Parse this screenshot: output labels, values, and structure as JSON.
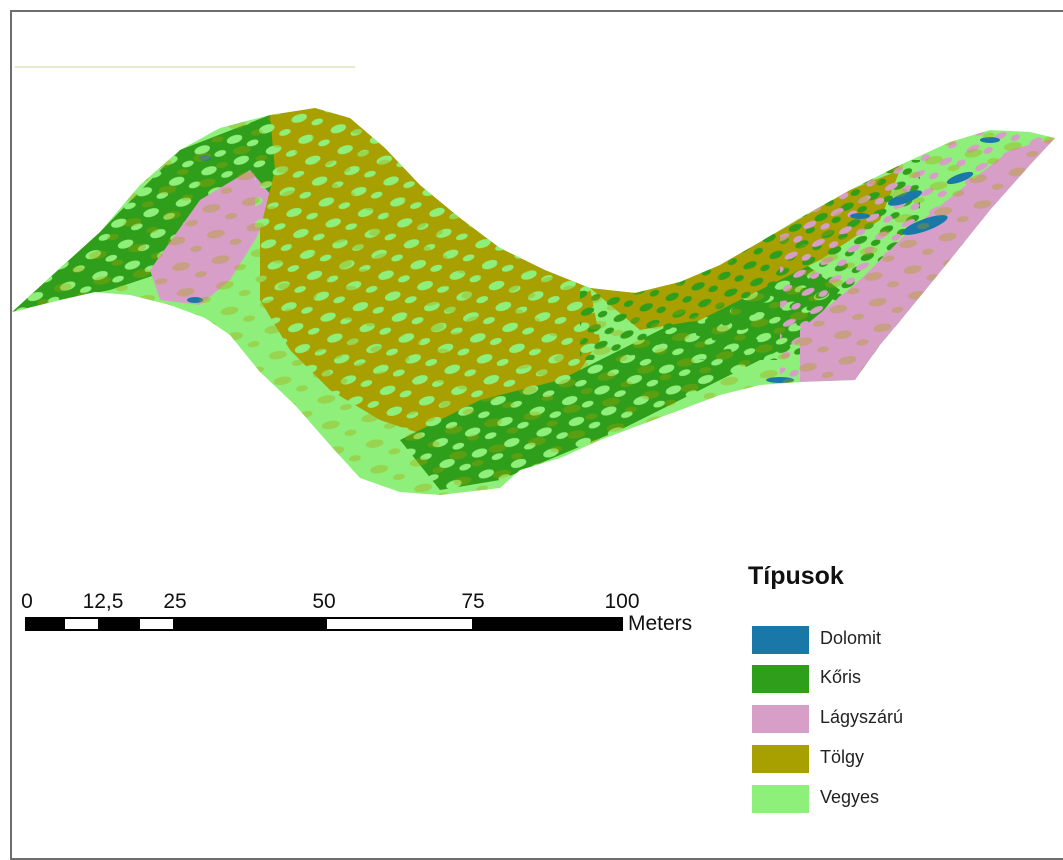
{
  "map": {
    "colors": {
      "dolomit": "#1a78a8",
      "koris": "#2f9e1a",
      "lagyszaru": "#d79ec8",
      "tolgy": "#a8a000",
      "vegyes": "#8ef07a"
    }
  },
  "scale_bar": {
    "tick_labels": [
      "0",
      "12,5",
      "25",
      "50",
      "75",
      "100"
    ],
    "units": "Meters"
  },
  "legend": {
    "title": "Típusok",
    "items": [
      {
        "label": "Dolomit",
        "color": "#1a78a8"
      },
      {
        "label": "Kőris",
        "color": "#2f9e1a"
      },
      {
        "label": "Lágyszárú",
        "color": "#d79ec8"
      },
      {
        "label": "Tölgy",
        "color": "#a8a000"
      },
      {
        "label": "Vegyes",
        "color": "#8ef07a"
      }
    ]
  }
}
